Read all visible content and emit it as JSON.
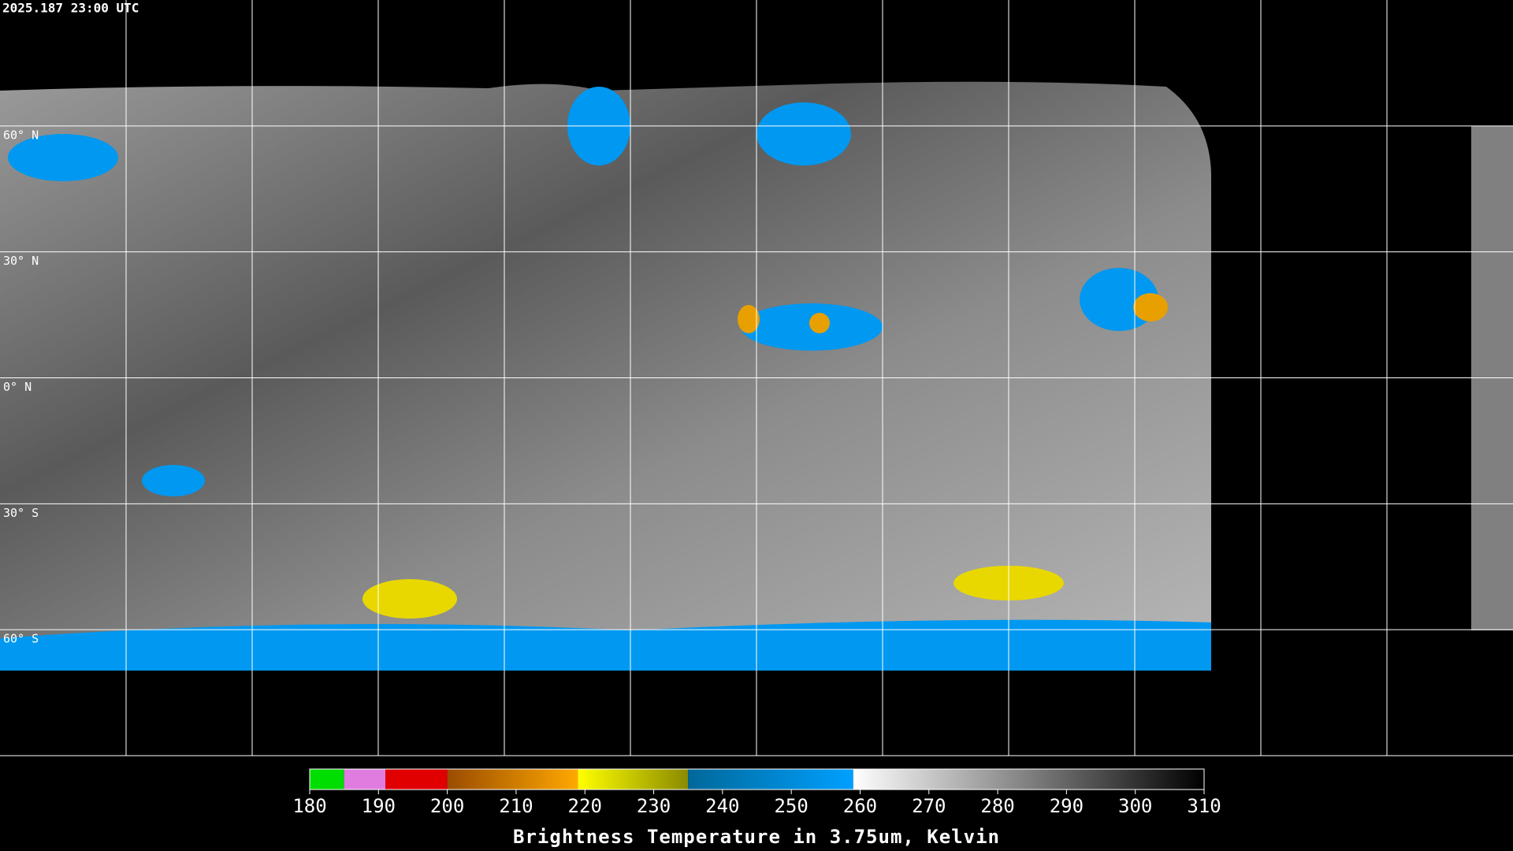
{
  "header": {
    "timestamp": "2025.187 23:00 UTC"
  },
  "map": {
    "lat_labels": [
      "60° N",
      "30° N",
      "0° N",
      "30° S",
      "60° S"
    ]
  },
  "colorbar": {
    "title": "Brightness Temperature in 3.75um, Kelvin",
    "range": [
      180,
      310
    ],
    "ticks": [
      180,
      190,
      200,
      210,
      220,
      230,
      240,
      250,
      260,
      270,
      280,
      290,
      300,
      310
    ],
    "segments": [
      {
        "from": 180,
        "to": 185,
        "colors": [
          "#00dd00",
          "#00dd00"
        ]
      },
      {
        "from": 185,
        "to": 191,
        "colors": [
          "#e07ce0",
          "#e07ce0"
        ]
      },
      {
        "from": 191,
        "to": 200,
        "colors": [
          "#e00000",
          "#e00000"
        ]
      },
      {
        "from": 200,
        "to": 219,
        "colors": [
          "#9a4c00",
          "#ffa800"
        ]
      },
      {
        "from": 219,
        "to": 235,
        "colors": [
          "#ffff00",
          "#8a8a00"
        ]
      },
      {
        "from": 235,
        "to": 259,
        "colors": [
          "#00689a",
          "#00a0ff"
        ]
      },
      {
        "from": 259,
        "to": 310,
        "colors": [
          "#ffffff",
          "#000000"
        ]
      }
    ]
  }
}
